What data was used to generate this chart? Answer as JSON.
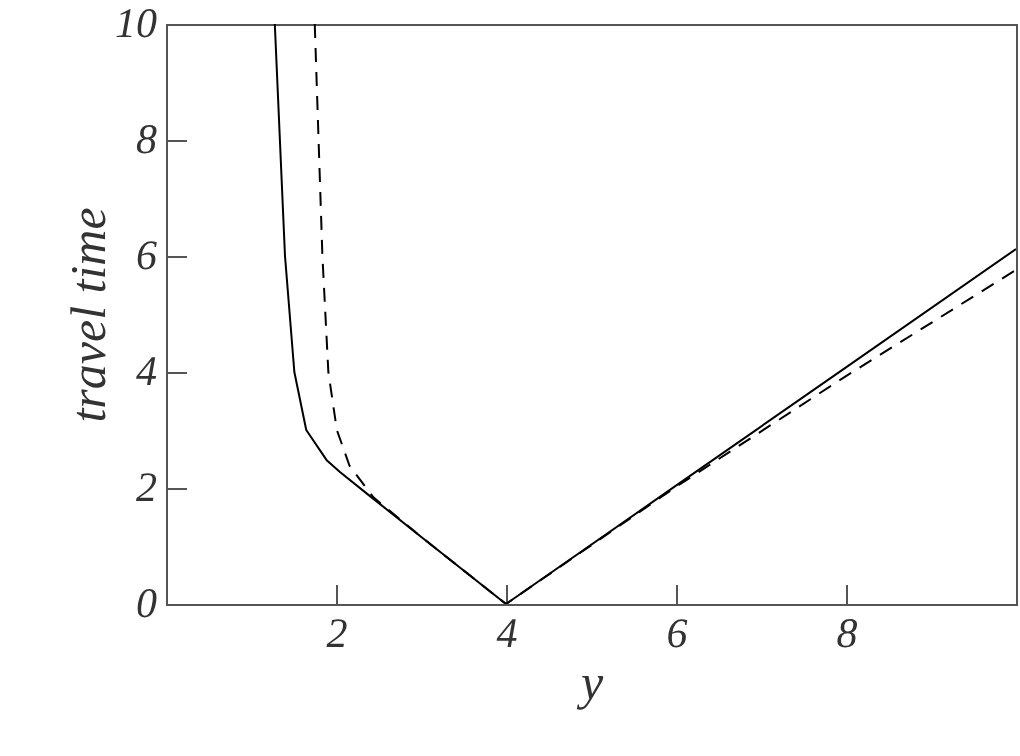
{
  "chart_data": {
    "type": "line",
    "xlabel": "y",
    "ylabel": "travel time",
    "xlim": [
      0,
      10
    ],
    "ylim": [
      0,
      10
    ],
    "xticks": [
      {
        "value": 0,
        "label": null
      },
      2,
      4,
      6,
      8,
      {
        "value": 10,
        "label": null
      }
    ],
    "yticks": [
      0,
      2,
      4,
      6,
      8,
      10
    ],
    "grid": false,
    "marker": "none",
    "series": [
      {
        "color": "#000000",
        "line_style": "solid",
        "x": [
          1.28,
          1.4,
          1.51,
          1.65,
          1.89,
          2.05,
          2.4,
          3,
          4,
          6,
          8,
          10
        ],
        "values": [
          10,
          6,
          4,
          3,
          2.48,
          2.27,
          1.86,
          1.16,
          0,
          2.04,
          4.08,
          6.12
        ]
      },
      {
        "color": "#000000",
        "line_style": "dashed",
        "x": [
          1.75,
          1.84,
          1.91,
          2.01,
          2.16,
          2.44,
          3,
          4,
          6,
          8,
          10
        ],
        "values": [
          10,
          6,
          4,
          3,
          2.38,
          1.84,
          1.16,
          0,
          2.02,
          3.93,
          5.76
        ]
      }
    ]
  }
}
